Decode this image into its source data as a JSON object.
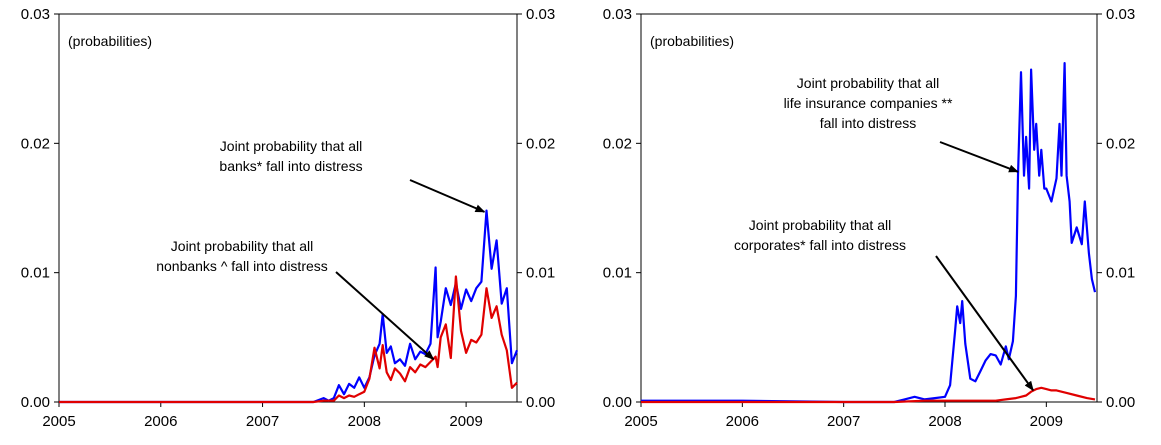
{
  "chart_data": [
    {
      "type": "line",
      "note": "(probabilities)",
      "xlim": [
        2005,
        2009.5
      ],
      "ylim": [
        0,
        0.03
      ],
      "x_ticks": [
        {
          "v": 2005,
          "label": "2005"
        },
        {
          "v": 2006,
          "label": "2006"
        },
        {
          "v": 2007,
          "label": "2007"
        },
        {
          "v": 2008,
          "label": "2008"
        },
        {
          "v": 2009,
          "label": "2009"
        }
      ],
      "y_ticks_left": [
        {
          "v": 0,
          "label": "0.00"
        },
        {
          "v": 0.01,
          "label": "0.01"
        },
        {
          "v": 0.02,
          "label": "0.02"
        },
        {
          "v": 0.03,
          "label": "0.03"
        }
      ],
      "y_ticks_right": [
        {
          "v": 0,
          "label": "0.00"
        },
        {
          "v": 0.01,
          "label": "0.01"
        },
        {
          "v": 0.02,
          "label": "0.02"
        },
        {
          "v": 0.03,
          "label": "0.03"
        }
      ],
      "series": [
        {
          "color": "#0000ff",
          "x": [
            2005.0,
            2006.0,
            2007.0,
            2007.5,
            2007.6,
            2007.65,
            2007.7,
            2007.75,
            2007.8,
            2007.85,
            2007.9,
            2007.95,
            2008.0,
            2008.05,
            2008.1,
            2008.15,
            2008.18,
            2008.22,
            2008.26,
            2008.3,
            2008.35,
            2008.4,
            2008.45,
            2008.5,
            2008.55,
            2008.6,
            2008.65,
            2008.7,
            2008.72,
            2008.75,
            2008.8,
            2008.85,
            2008.9,
            2008.95,
            2009.0,
            2009.05,
            2009.1,
            2009.15,
            2009.2,
            2009.25,
            2009.3,
            2009.35,
            2009.4,
            2009.45,
            2009.5
          ],
          "y": [
            0.0,
            0.0,
            0.0,
            0.0,
            0.0003,
            0.0001,
            0.0003,
            0.0013,
            0.0006,
            0.0014,
            0.0011,
            0.0019,
            0.0011,
            0.0019,
            0.0036,
            0.0045,
            0.0068,
            0.0038,
            0.0043,
            0.003,
            0.0033,
            0.0028,
            0.0045,
            0.0033,
            0.0039,
            0.0037,
            0.0045,
            0.0104,
            0.005,
            0.0062,
            0.0088,
            0.0075,
            0.0092,
            0.0072,
            0.0087,
            0.0078,
            0.0088,
            0.0093,
            0.0148,
            0.0103,
            0.0125,
            0.0076,
            0.0088,
            0.003,
            0.004
          ]
        },
        {
          "color": "#e00000",
          "x": [
            2005.0,
            2006.0,
            2007.0,
            2007.5,
            2007.6,
            2007.65,
            2007.7,
            2007.75,
            2007.8,
            2007.85,
            2007.9,
            2007.95,
            2008.0,
            2008.05,
            2008.1,
            2008.15,
            2008.18,
            2008.22,
            2008.26,
            2008.3,
            2008.35,
            2008.4,
            2008.45,
            2008.5,
            2008.55,
            2008.6,
            2008.65,
            2008.7,
            2008.72,
            2008.75,
            2008.8,
            2008.85,
            2008.9,
            2008.95,
            2009.0,
            2009.05,
            2009.1,
            2009.15,
            2009.2,
            2009.25,
            2009.3,
            2009.35,
            2009.4,
            2009.45,
            2009.5
          ],
          "y": [
            0.0,
            0.0,
            0.0,
            0.0,
            0.0001,
            0.0001,
            0.0001,
            0.0005,
            0.0003,
            0.0005,
            0.0004,
            0.0006,
            0.0008,
            0.0018,
            0.0042,
            0.0026,
            0.0044,
            0.0023,
            0.0017,
            0.0026,
            0.0022,
            0.0016,
            0.0027,
            0.0023,
            0.0029,
            0.0027,
            0.0031,
            0.0035,
            0.0027,
            0.005,
            0.006,
            0.0034,
            0.0097,
            0.0055,
            0.0038,
            0.0048,
            0.0046,
            0.0052,
            0.0088,
            0.0065,
            0.0074,
            0.0052,
            0.004,
            0.0011,
            0.0015
          ]
        }
      ],
      "annotations": [
        {
          "lines": [
            "Joint probability that all",
            "banks* fall into distress"
          ],
          "points_to": [
            2009.18,
            0.0147
          ]
        },
        {
          "lines": [
            "Joint probability that all",
            "nonbanks ^ fall into distress"
          ],
          "points_to": [
            2008.68,
            0.0033
          ]
        }
      ]
    },
    {
      "type": "line",
      "note": "(probabilities)",
      "xlim": [
        2005,
        2009.5
      ],
      "ylim": [
        0,
        0.03
      ],
      "x_ticks": [
        {
          "v": 2005,
          "label": "2005"
        },
        {
          "v": 2006,
          "label": "2006"
        },
        {
          "v": 2007,
          "label": "2007"
        },
        {
          "v": 2008,
          "label": "2008"
        },
        {
          "v": 2009,
          "label": "2009"
        }
      ],
      "y_ticks_left": [
        {
          "v": 0,
          "label": "0.00"
        },
        {
          "v": 0.01,
          "label": "0.01"
        },
        {
          "v": 0.02,
          "label": "0.02"
        },
        {
          "v": 0.03,
          "label": "0.03"
        }
      ],
      "y_ticks_right": [
        {
          "v": 0,
          "label": "0.00"
        },
        {
          "v": 0.01,
          "label": "0.01"
        },
        {
          "v": 0.02,
          "label": "0.02"
        },
        {
          "v": 0.03,
          "label": "0.03"
        }
      ],
      "series": [
        {
          "color": "#0000ff",
          "x": [
            2005.0,
            2006.0,
            2007.0,
            2007.5,
            2007.6,
            2007.7,
            2007.8,
            2007.9,
            2008.0,
            2008.05,
            2008.1,
            2008.12,
            2008.15,
            2008.17,
            2008.2,
            2008.25,
            2008.3,
            2008.35,
            2008.4,
            2008.45,
            2008.5,
            2008.55,
            2008.6,
            2008.63,
            2008.67,
            2008.7,
            2008.72,
            2008.75,
            2008.78,
            2008.8,
            2008.83,
            2008.85,
            2008.88,
            2008.9,
            2008.93,
            2008.95,
            2008.98,
            2009.0,
            2009.05,
            2009.1,
            2009.13,
            2009.15,
            2009.18,
            2009.2,
            2009.23,
            2009.25,
            2009.3,
            2009.35,
            2009.38,
            2009.42,
            2009.45,
            2009.48
          ],
          "y": [
            0.0001,
            0.0001,
            0.0,
            0.0,
            0.0002,
            0.0004,
            0.0002,
            0.0003,
            0.0004,
            0.0013,
            0.0055,
            0.0074,
            0.0061,
            0.0078,
            0.0045,
            0.0018,
            0.0016,
            0.0024,
            0.0032,
            0.0037,
            0.0036,
            0.0029,
            0.0043,
            0.0033,
            0.0047,
            0.0082,
            0.0175,
            0.0255,
            0.0175,
            0.0205,
            0.0165,
            0.0257,
            0.0195,
            0.0215,
            0.0175,
            0.0195,
            0.0165,
            0.0165,
            0.0155,
            0.0173,
            0.0215,
            0.0175,
            0.0262,
            0.0175,
            0.0155,
            0.0123,
            0.0135,
            0.0122,
            0.0155,
            0.0115,
            0.0095,
            0.0085
          ]
        },
        {
          "color": "#e00000",
          "x": [
            2005.0,
            2006.0,
            2007.0,
            2007.5,
            2007.8,
            2008.0,
            2008.3,
            2008.5,
            2008.6,
            2008.7,
            2008.75,
            2008.8,
            2008.85,
            2008.9,
            2008.95,
            2009.0,
            2009.05,
            2009.1,
            2009.2,
            2009.3,
            2009.4,
            2009.48
          ],
          "y": [
            0.0,
            0.0,
            0.0,
            0.0,
            0.0001,
            0.0001,
            0.0001,
            0.0001,
            0.0002,
            0.0003,
            0.0004,
            0.0005,
            0.0008,
            0.001,
            0.0011,
            0.001,
            0.0009,
            0.0009,
            0.0007,
            0.0005,
            0.0003,
            0.0002
          ]
        }
      ],
      "annotations": [
        {
          "lines": [
            "Joint probability that all",
            "life insurance companies **",
            "fall into distress"
          ],
          "points_to": [
            2008.72,
            0.0178
          ]
        },
        {
          "lines": [
            "Joint probability that all",
            "corporates* fall into distress"
          ],
          "points_to": [
            2008.87,
            0.0009
          ]
        }
      ]
    }
  ]
}
